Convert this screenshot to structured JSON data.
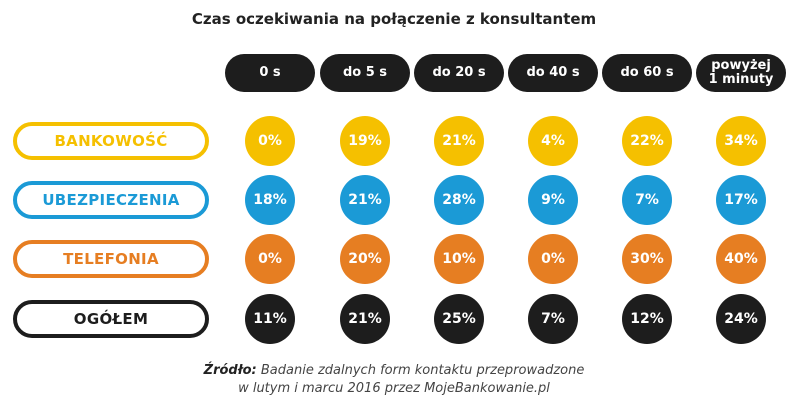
{
  "chart_data": {
    "type": "table",
    "title": "Czas oczekiwania na połączenie z konsultantem",
    "columns": [
      "0 s",
      "do 5 s",
      "do 20 s",
      "do 40 s",
      "do 60 s",
      "powyżej\n1 minuty"
    ],
    "rows": [
      {
        "label": "BANKOWOŚĆ",
        "color": "#f5c000",
        "values": [
          "0%",
          "19%",
          "21%",
          "4%",
          "22%",
          "34%"
        ]
      },
      {
        "label": "UBEZPIECZENIA",
        "color": "#1b9ad6",
        "values": [
          "18%",
          "21%",
          "28%",
          "9%",
          "7%",
          "17%"
        ]
      },
      {
        "label": "TELEFONIA",
        "color": "#e67e22",
        "values": [
          "0%",
          "20%",
          "10%",
          "0%",
          "30%",
          "40%"
        ]
      },
      {
        "label": "OGÓŁEM",
        "color": "#1d1d1d",
        "values": [
          "11%",
          "21%",
          "25%",
          "7%",
          "12%",
          "24%"
        ]
      }
    ]
  },
  "source": {
    "label": "Źródło:",
    "line1": "Badanie zdalnych form kontaktu przeprowadzone",
    "line2": "w lutym i marcu 2016 przez MojeBankowanie.pl"
  }
}
